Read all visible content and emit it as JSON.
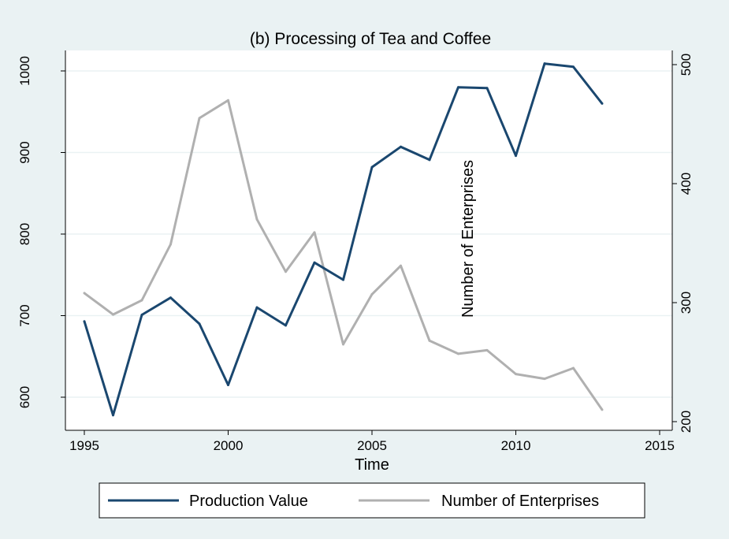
{
  "chart_data": {
    "type": "line",
    "title": "(b) Processing of Tea and Coffee",
    "xlabel": "Time",
    "ylabel_left": "",
    "ylabel_right": "Number of Enterprises",
    "x": [
      1995,
      1996,
      1997,
      1998,
      1999,
      2000,
      2001,
      2002,
      2003,
      2004,
      2005,
      2006,
      2007,
      2008,
      2009,
      2010,
      2011,
      2012,
      2013
    ],
    "xlim": [
      1995,
      2015
    ],
    "xticks": [
      "1995",
      "2000",
      "2005",
      "2010",
      "2015"
    ],
    "ylim_left": [
      580,
      1020
    ],
    "yticks_left": [
      "600",
      "700",
      "800",
      "900",
      "1000"
    ],
    "ylim_right": [
      200,
      510
    ],
    "yticks_right": [
      "200",
      "300",
      "400",
      "500"
    ],
    "grid": true,
    "legend_position": "bottom",
    "series": [
      {
        "name": "Production Value",
        "axis": "left",
        "color": "#1a476f",
        "values": [
          693,
          578,
          701,
          722,
          690,
          615,
          710,
          688,
          765,
          744,
          882,
          907,
          891,
          980,
          979,
          896,
          1009,
          1005,
          960
        ]
      },
      {
        "name": "Number of Enterprises",
        "axis": "right",
        "color": "#b0b0b0",
        "values": [
          308,
          290,
          302,
          349,
          455,
          470,
          370,
          326,
          359,
          265,
          307,
          331,
          268,
          257,
          260,
          240,
          236,
          245,
          210
        ]
      }
    ]
  },
  "colors": {
    "outer_background": "#eaf2f3",
    "plot_background": "#ffffff",
    "grid": "#eaf2f3"
  }
}
